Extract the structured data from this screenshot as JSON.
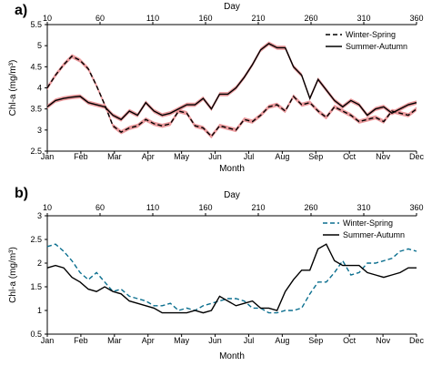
{
  "chart_data": [
    {
      "panel": "a)",
      "type": "line",
      "xlabel": "Month",
      "ylabel": "Chl-a (mg/m³)",
      "top_xlabel": "Day",
      "ylim": [
        2.5,
        5.5
      ],
      "yticks": [
        "2.5",
        "3",
        "3.5",
        "4",
        "4.5",
        "5",
        "5.5"
      ],
      "month_ticks": [
        "Jan",
        "Feb",
        "Mar",
        "Apr",
        "May",
        "Jun",
        "Jul",
        "Aug",
        "Sep",
        "Oct",
        "Nov",
        "Dec"
      ],
      "day_ticks": [
        "10",
        "60",
        "110",
        "160",
        "210",
        "260",
        "310",
        "360"
      ],
      "legend": [
        "Winter-Spring",
        "Summer-Autumn"
      ],
      "band_color": "#e8888c",
      "series": [
        {
          "name": "Winter-Spring",
          "style": "dashed",
          "color": "#000000",
          "x": [
            1,
            9,
            17,
            25,
            33,
            41,
            49,
            57,
            65,
            73,
            81,
            89,
            97,
            105,
            113,
            121,
            129,
            137,
            145,
            153,
            161,
            169,
            177,
            185,
            193,
            201,
            209,
            217,
            225,
            233,
            241,
            249,
            257,
            265,
            273,
            281,
            289,
            297,
            305,
            313,
            321,
            329,
            337,
            345,
            353,
            361
          ],
          "y": [
            4.0,
            4.3,
            4.55,
            4.75,
            4.65,
            4.45,
            4.05,
            3.6,
            3.1,
            2.95,
            3.05,
            3.1,
            3.25,
            3.15,
            3.1,
            3.15,
            3.45,
            3.4,
            3.1,
            3.05,
            2.85,
            3.1,
            3.05,
            3.0,
            3.25,
            3.2,
            3.35,
            3.55,
            3.6,
            3.45,
            3.8,
            3.6,
            3.65,
            3.45,
            3.3,
            3.55,
            3.45,
            3.35,
            3.2,
            3.25,
            3.3,
            3.2,
            3.45,
            3.4,
            3.35,
            3.5
          ]
        },
        {
          "name": "Summer-Autumn",
          "style": "solid",
          "color": "#000000",
          "x": [
            1,
            9,
            17,
            25,
            33,
            41,
            49,
            57,
            65,
            73,
            81,
            89,
            97,
            105,
            113,
            121,
            129,
            137,
            145,
            153,
            161,
            169,
            177,
            185,
            193,
            201,
            209,
            217,
            225,
            233,
            241,
            249,
            257,
            265,
            273,
            281,
            289,
            297,
            305,
            313,
            321,
            329,
            337,
            345,
            353,
            361
          ],
          "y": [
            3.55,
            3.7,
            3.75,
            3.78,
            3.8,
            3.65,
            3.6,
            3.55,
            3.35,
            3.25,
            3.45,
            3.35,
            3.65,
            3.45,
            3.35,
            3.4,
            3.5,
            3.6,
            3.6,
            3.75,
            3.5,
            3.85,
            3.85,
            4.0,
            4.25,
            4.55,
            4.9,
            5.05,
            4.95,
            4.95,
            4.5,
            4.3,
            3.75,
            4.2,
            3.95,
            3.7,
            3.55,
            3.7,
            3.6,
            3.35,
            3.5,
            3.55,
            3.4,
            3.5,
            3.6,
            3.65
          ]
        }
      ]
    },
    {
      "panel": "b)",
      "type": "line",
      "xlabel": "Month",
      "ylabel": "Chl-a (mg/m³)",
      "top_xlabel": "Day",
      "ylim": [
        0.5,
        3
      ],
      "yticks": [
        "0.5",
        "1",
        "1.5",
        "2",
        "2.5",
        "3"
      ],
      "month_ticks": [
        "Jan",
        "Feb",
        "Mar",
        "Apr",
        "May",
        "Jun",
        "Jul",
        "Aug",
        "Sep",
        "Oct",
        "Nov",
        "Dec"
      ],
      "day_ticks": [
        "10",
        "60",
        "110",
        "160",
        "210",
        "260",
        "310",
        "360"
      ],
      "legend": [
        "Winter-Spring",
        "Summer-Autumn"
      ],
      "dash_color": "#0b6f8f",
      "series": [
        {
          "name": "Winter-Spring",
          "style": "dashed",
          "color": "#0b6f8f",
          "x": [
            1,
            9,
            17,
            25,
            33,
            41,
            49,
            57,
            65,
            73,
            81,
            89,
            97,
            105,
            113,
            121,
            129,
            137,
            145,
            153,
            161,
            169,
            177,
            185,
            193,
            201,
            209,
            217,
            225,
            233,
            241,
            249,
            257,
            265,
            273,
            281,
            289,
            297,
            305,
            313,
            321,
            329,
            337,
            345,
            353,
            361
          ],
          "y": [
            2.35,
            2.4,
            2.25,
            2.05,
            1.8,
            1.65,
            1.8,
            1.6,
            1.4,
            1.45,
            1.3,
            1.25,
            1.2,
            1.1,
            1.1,
            1.15,
            1.0,
            1.05,
            1.0,
            1.1,
            1.15,
            1.2,
            1.25,
            1.25,
            1.2,
            1.05,
            1.05,
            0.95,
            0.95,
            1.0,
            1.0,
            1.05,
            1.35,
            1.6,
            1.6,
            1.8,
            2.05,
            1.75,
            1.8,
            2.0,
            2.0,
            2.05,
            2.1,
            2.25,
            2.3,
            2.25
          ]
        },
        {
          "name": "Summer-Autumn",
          "style": "solid",
          "color": "#000000",
          "x": [
            1,
            9,
            17,
            25,
            33,
            41,
            49,
            57,
            65,
            73,
            81,
            89,
            97,
            105,
            113,
            121,
            129,
            137,
            145,
            153,
            161,
            169,
            177,
            185,
            193,
            201,
            209,
            217,
            225,
            233,
            241,
            249,
            257,
            265,
            273,
            281,
            289,
            297,
            305,
            313,
            321,
            329,
            337,
            345,
            353,
            361
          ],
          "y": [
            1.9,
            1.95,
            1.9,
            1.7,
            1.6,
            1.45,
            1.4,
            1.5,
            1.4,
            1.35,
            1.2,
            1.15,
            1.1,
            1.05,
            0.95,
            0.95,
            0.95,
            0.95,
            1.0,
            0.95,
            1.0,
            1.3,
            1.2,
            1.1,
            1.15,
            1.2,
            1.05,
            1.05,
            1.0,
            1.4,
            1.65,
            1.85,
            1.85,
            2.3,
            2.4,
            2.05,
            1.95,
            1.95,
            1.95,
            1.8,
            1.75,
            1.7,
            1.75,
            1.8,
            1.9,
            1.9
          ]
        }
      ]
    }
  ]
}
